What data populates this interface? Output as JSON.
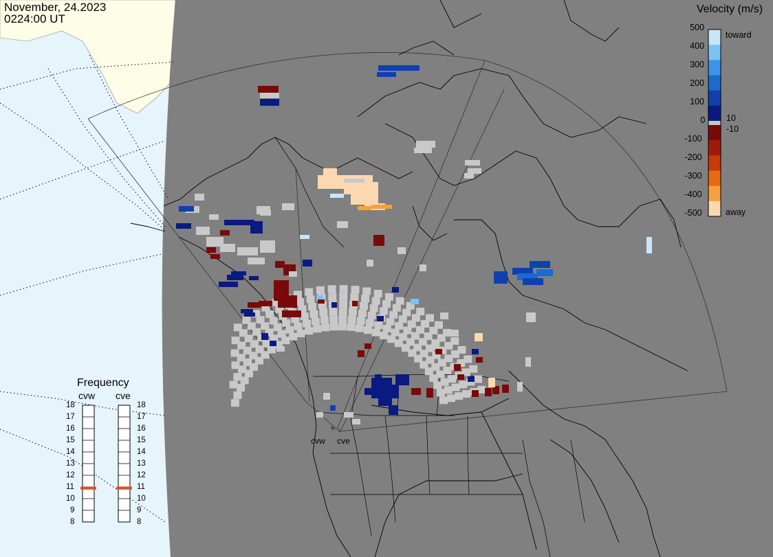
{
  "header": {
    "date": "November, 24.2023",
    "time": "0224:00 UT"
  },
  "legend": {
    "title": "Velocity (m/s)",
    "ticks": [
      "500",
      "400",
      "300",
      "200",
      "100",
      "10",
      "0",
      "-10",
      "-100",
      "-200",
      "-300",
      "-400",
      "-500"
    ],
    "toward_label": "toward",
    "away_label": "away",
    "colors": {
      "toward": [
        "#0a1a80",
        "#1040b0",
        "#1c6ad0",
        "#3a96ea",
        "#7cc2f4",
        "#c8e6fa"
      ],
      "away": [
        "#7a0a0a",
        "#a01a0a",
        "#c83a08",
        "#e86a10",
        "#f8a040",
        "#fcd8b0"
      ],
      "ground_scatter": "#c9c9c9"
    }
  },
  "frequency_panel": {
    "title": "Frequency",
    "radars": [
      {
        "name": "cvw",
        "frequency_mhz": 10.9
      },
      {
        "name": "cve",
        "frequency_mhz": 10.9
      }
    ],
    "scale": [
      "18",
      "17",
      "16",
      "15",
      "14",
      "13",
      "12",
      "11",
      "10",
      "9",
      "8"
    ],
    "marker_color": "#e05020"
  },
  "sites": [
    {
      "name": "cvw"
    },
    {
      "name": "cve"
    }
  ],
  "map": {
    "background_color": "#808080",
    "land_color_outside": "#fdfde8",
    "ocean_color_outside": "#e6f4fc"
  }
}
